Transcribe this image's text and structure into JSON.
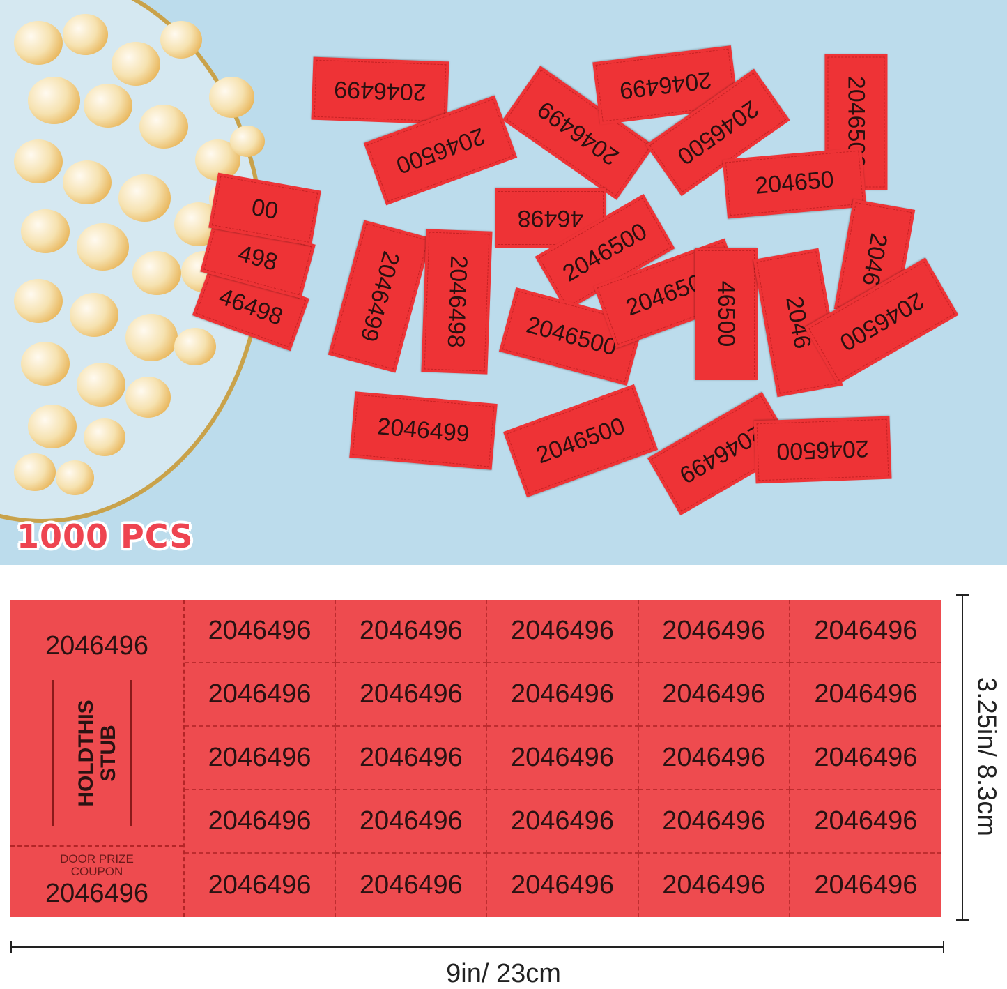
{
  "photo": {
    "badge": "1000 PCS",
    "colors": {
      "background": "#bcdcec",
      "ticket": "#ee3336"
    },
    "scattered_tickets": [
      "2046499",
      "2046500",
      "2046499",
      "2046499",
      "2046500",
      "2046500",
      "204650",
      "46498",
      "2046499",
      "2046498",
      "2046500",
      "2046500",
      "2046500",
      "46500",
      "2046",
      "2046",
      "2046500",
      "2046499",
      "2046500",
      "2046499",
      "2046500",
      "46498",
      "498",
      "00"
    ]
  },
  "sheet": {
    "stub": {
      "top_number": "2046496",
      "hold_line1": "HOLDTHIS",
      "hold_line2": "STUB",
      "door_prize_line1": "DOOR PRIZE",
      "door_prize_line2": "COUPON",
      "bottom_number": "2046496"
    },
    "ticket_number": "2046496",
    "rows": 5,
    "columns": 5,
    "color": "#ee4b4f"
  },
  "dimensions": {
    "width_label": "9in/ 23cm",
    "height_label": "3.25in/ 8.3cm"
  }
}
